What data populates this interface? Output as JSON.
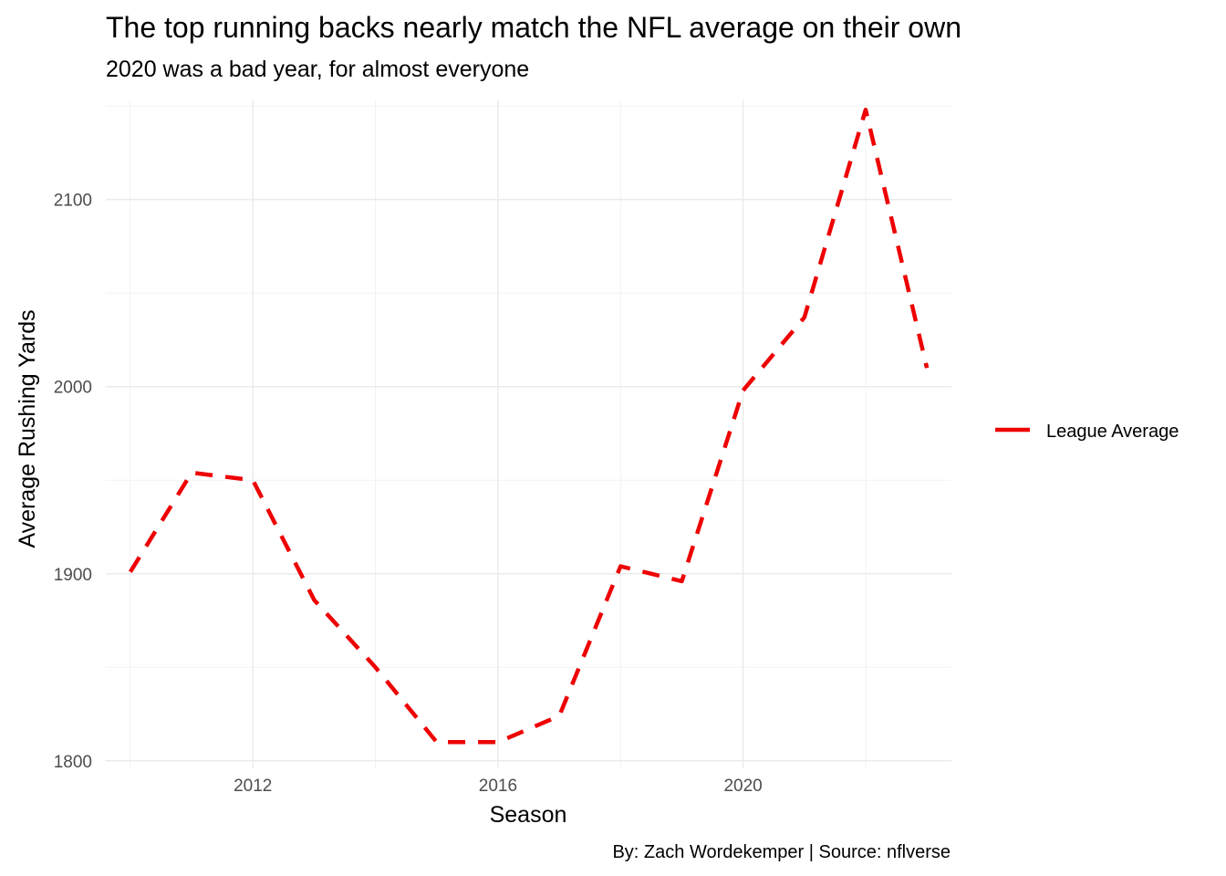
{
  "chart_data": {
    "type": "line",
    "title": "The top running backs nearly match the NFL average on their own",
    "subtitle": "2020 was a bad year, for almost everyone",
    "xlabel": "Season",
    "ylabel": "Average Rushing Yards",
    "caption": "By: Zach Wordekemper | Source: nflverse",
    "xlim": [
      2009.6,
      2023.4
    ],
    "ylim": [
      1796,
      2153
    ],
    "x_ticks": [
      2012,
      2016,
      2020
    ],
    "y_ticks": [
      1800,
      1900,
      2000,
      2100
    ],
    "grid": true,
    "legend": {
      "position": "right"
    },
    "series": [
      {
        "name": "League Average",
        "color": "#ee0000",
        "line_style": "dashed",
        "x": [
          2010,
          2011,
          2012,
          2013,
          2014,
          2015,
          2016,
          2017,
          2018,
          2019,
          2020,
          2021,
          2022,
          2023
        ],
        "y": [
          1901,
          1954,
          1950,
          1886,
          1850,
          1810,
          1810,
          1824,
          1904,
          1896,
          1998,
          2037,
          2148,
          2010
        ]
      }
    ]
  }
}
